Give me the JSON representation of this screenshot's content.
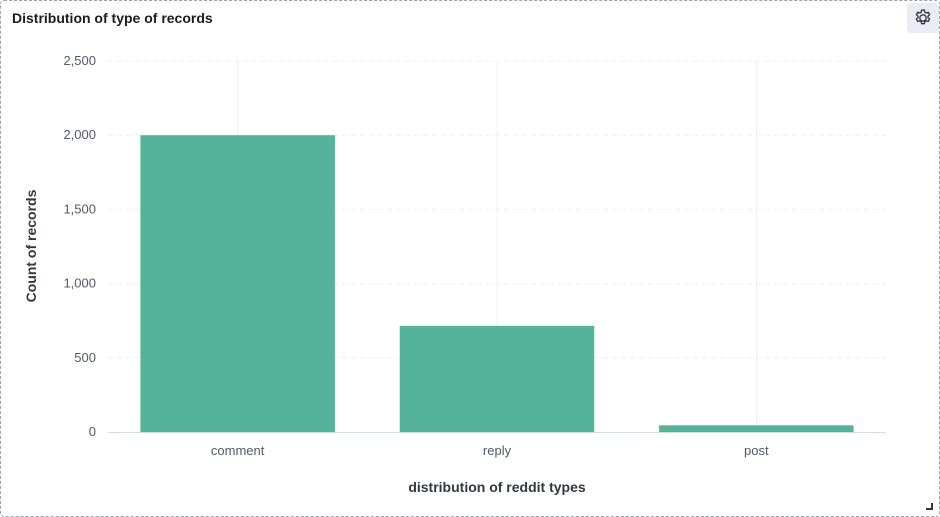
{
  "panel": {
    "title": "Distribution of type of records"
  },
  "icons": {
    "settings": "gear-icon",
    "resize": "resize-handle-icon"
  },
  "colors": {
    "bar": "#54b399",
    "grid": "#eef0f3",
    "axis": "#d3dae6"
  },
  "chart_data": {
    "type": "bar",
    "title": "Distribution of type of records",
    "xlabel": "distribution of reddit types",
    "ylabel": "Count of records",
    "categories": [
      "comment",
      "reply",
      "post"
    ],
    "values": [
      2000,
      715,
      45
    ],
    "ylim": [
      0,
      2500
    ],
    "yticks": [
      0,
      500,
      1000,
      1500,
      2000,
      2500
    ],
    "ytick_labels": [
      "0",
      "500",
      "1,000",
      "1,500",
      "2,000",
      "2,500"
    ],
    "grid": true,
    "legend": "none"
  }
}
